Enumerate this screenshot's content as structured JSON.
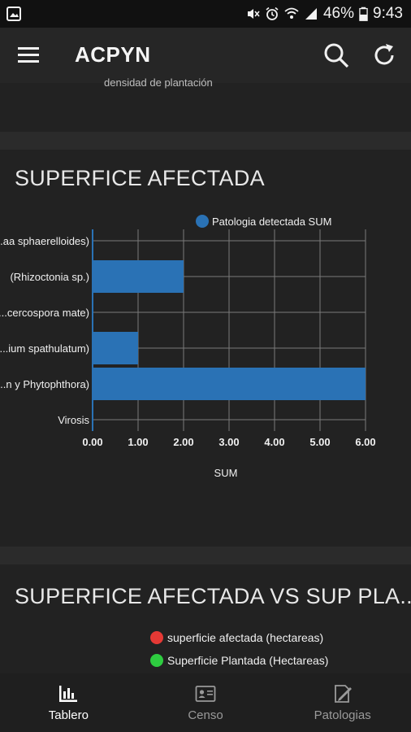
{
  "status_bar": {
    "battery": "46%",
    "time": "9:43"
  },
  "app_bar": {
    "title": "ACPYN"
  },
  "previous_chart": {
    "label": "densidad de plantación"
  },
  "section1": {
    "title": "SUPERFICE AFECTADA"
  },
  "chart_data": {
    "type": "bar",
    "orientation": "horizontal",
    "categories": [
      "(...aa sphaerelloides)",
      "(Rhizoctonia sp.)",
      "(...cercospora mate)",
      "(...ium spathulatum)",
      "(...n y Phytophthora)",
      "Virosis"
    ],
    "series": [
      {
        "name": "Patologia detectada SUM",
        "values": [
          0,
          2,
          0,
          1,
          6,
          0
        ]
      }
    ],
    "x_ticks": [
      "0.00",
      "1.00",
      "2.00",
      "3.00",
      "4.00",
      "5.00",
      "6.00"
    ],
    "xlabel": "SUM",
    "ylabel": "",
    "xlim": [
      0,
      6
    ],
    "legend": "top",
    "grid": true,
    "bar_color": "#2a72b5"
  },
  "section2": {
    "title": "SUPERFICE AFECTADA VS SUP PLA...",
    "legend": [
      {
        "name": "superficie afectada (hectareas)",
        "color": "#e53935"
      },
      {
        "name": "Superficie Plantada (Hectareas)",
        "color": "#2ecc40"
      }
    ]
  },
  "bottom_nav": {
    "items": [
      {
        "label": "Tablero",
        "icon": "bar-chart-icon",
        "active": true
      },
      {
        "label": "Censo",
        "icon": "id-card-icon",
        "active": false
      },
      {
        "label": "Patologias",
        "icon": "edit-document-icon",
        "active": false
      }
    ]
  }
}
